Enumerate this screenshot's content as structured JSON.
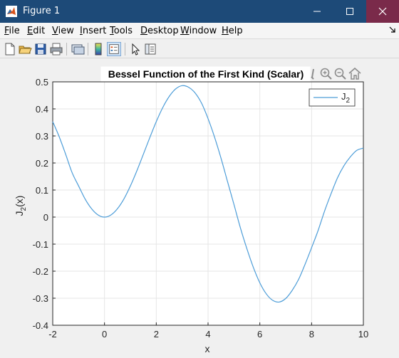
{
  "window": {
    "title": "Figure 1"
  },
  "menu": {
    "items": [
      {
        "key": "F",
        "rest": "ile"
      },
      {
        "key": "E",
        "rest": "dit"
      },
      {
        "key": "V",
        "rest": "iew"
      },
      {
        "key": "I",
        "rest": "nsert"
      },
      {
        "key": "T",
        "rest": "ools"
      },
      {
        "key": "D",
        "rest": "esktop"
      },
      {
        "key": "W",
        "rest": "indow"
      },
      {
        "key": "H",
        "rest": "elp"
      }
    ]
  },
  "toolbar": {
    "icons": [
      "new-figure-icon",
      "open-file-icon",
      "save-icon",
      "print-icon",
      "link-plot-icon",
      "insert-colorbar-icon",
      "insert-legend-icon",
      "edit-plot-icon",
      "property-inspector-icon"
    ]
  },
  "axes_toolbar": {
    "icons": [
      "brush-icon",
      "zoom-in-icon",
      "zoom-out-icon",
      "home-icon"
    ]
  },
  "chart_data": {
    "type": "line",
    "title": "Bessel Function of the First Kind (Scalar)",
    "xlabel": "x",
    "ylabel": "J2(x)",
    "ylabel_main": "J",
    "ylabel_sub": "2",
    "ylabel_tail": "(x)",
    "xlim": [
      -2,
      10
    ],
    "ylim": [
      -0.4,
      0.5
    ],
    "xticks": [
      "-2",
      "0",
      "2",
      "4",
      "6",
      "8",
      "10"
    ],
    "yticks": [
      "-0.4",
      "-0.3",
      "-0.2",
      "-0.1",
      "0",
      "0.1",
      "0.2",
      "0.3",
      "0.4",
      "0.5"
    ],
    "grid": true,
    "legend_position": "top-right",
    "line_color": "#4d9dd8",
    "series": [
      {
        "name": "J2",
        "name_main": "J",
        "name_sub": "2",
        "x": [
          -2,
          -1.75,
          -1.5,
          -1.25,
          -1,
          -0.75,
          -0.5,
          -0.25,
          0,
          0.25,
          0.5,
          0.75,
          1,
          1.25,
          1.5,
          1.75,
          2,
          2.25,
          2.5,
          2.75,
          3,
          3.25,
          3.5,
          3.75,
          4,
          4.25,
          4.5,
          4.75,
          5,
          5.25,
          5.5,
          5.75,
          6,
          6.25,
          6.5,
          6.75,
          7,
          7.25,
          7.5,
          7.75,
          8,
          8.25,
          8.5,
          8.75,
          9,
          9.25,
          9.5,
          9.75,
          10
        ],
        "y": [
          0.353,
          0.297,
          0.232,
          0.164,
          0.115,
          0.067,
          0.031,
          0.008,
          0,
          0.008,
          0.031,
          0.067,
          0.115,
          0.171,
          0.232,
          0.294,
          0.353,
          0.405,
          0.446,
          0.474,
          0.486,
          0.48,
          0.459,
          0.421,
          0.364,
          0.296,
          0.218,
          0.132,
          0.047,
          -0.04,
          -0.117,
          -0.186,
          -0.243,
          -0.284,
          -0.308,
          -0.314,
          -0.301,
          -0.271,
          -0.23,
          -0.174,
          -0.113,
          -0.05,
          0.022,
          0.086,
          0.145,
          0.19,
          0.223,
          0.247,
          0.255
        ]
      }
    ]
  }
}
